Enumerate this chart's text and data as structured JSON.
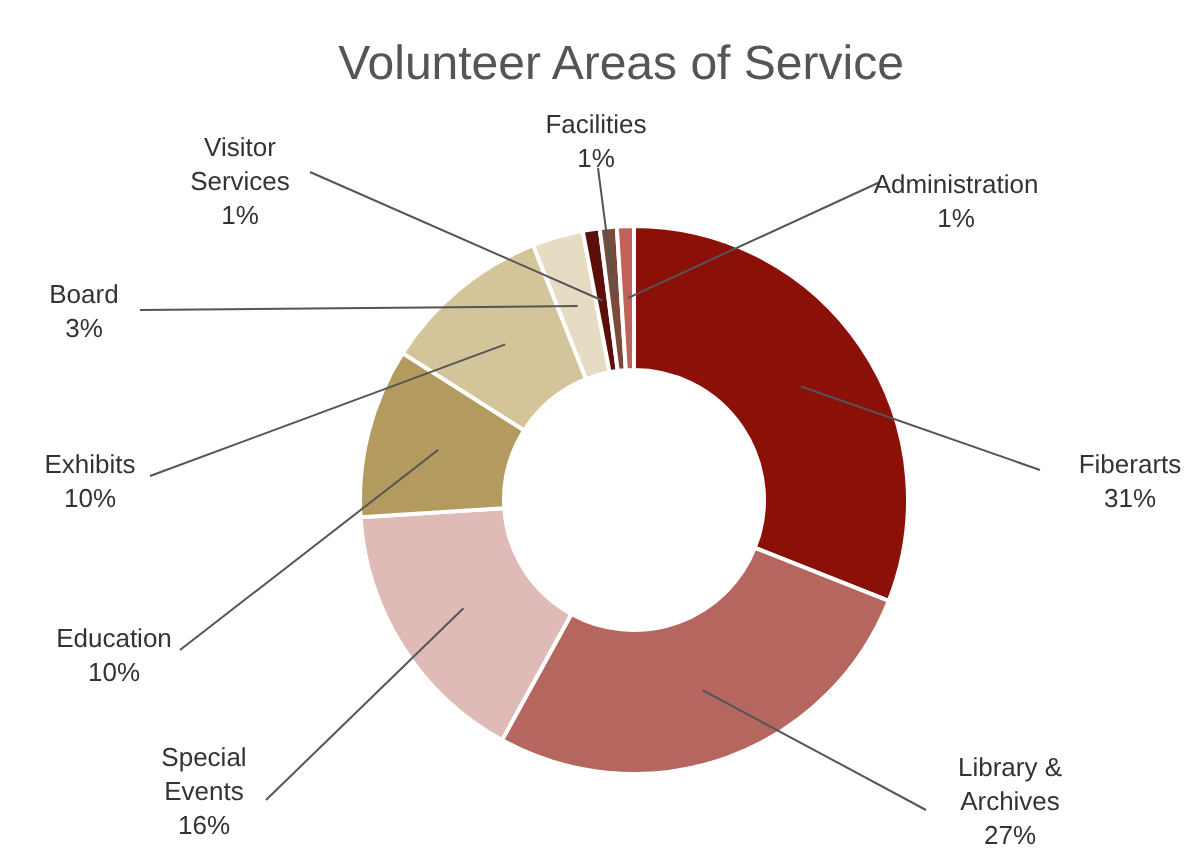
{
  "chart_data": {
    "type": "donut",
    "title": "Volunteer Areas of Service",
    "categories": [
      "Fiberarts",
      "Library & Archives",
      "Special Events",
      "Education",
      "Exhibits",
      "Board",
      "Visitor Services",
      "Facilities",
      "Administration"
    ],
    "values": [
      31,
      27,
      16,
      10,
      10,
      3,
      1,
      1,
      1
    ],
    "value_labels": [
      "31%",
      "27%",
      "16%",
      "10%",
      "10%",
      "3%",
      "1%",
      "1%",
      "1%"
    ],
    "colors": [
      "#8b1108",
      "#b5675f",
      "#e0bab6",
      "#b39a5e",
      "#d4c49a",
      "#e6dcc4",
      "#5c0f0a",
      "#7b4a3a",
      "#c0625a"
    ],
    "legend": false
  }
}
